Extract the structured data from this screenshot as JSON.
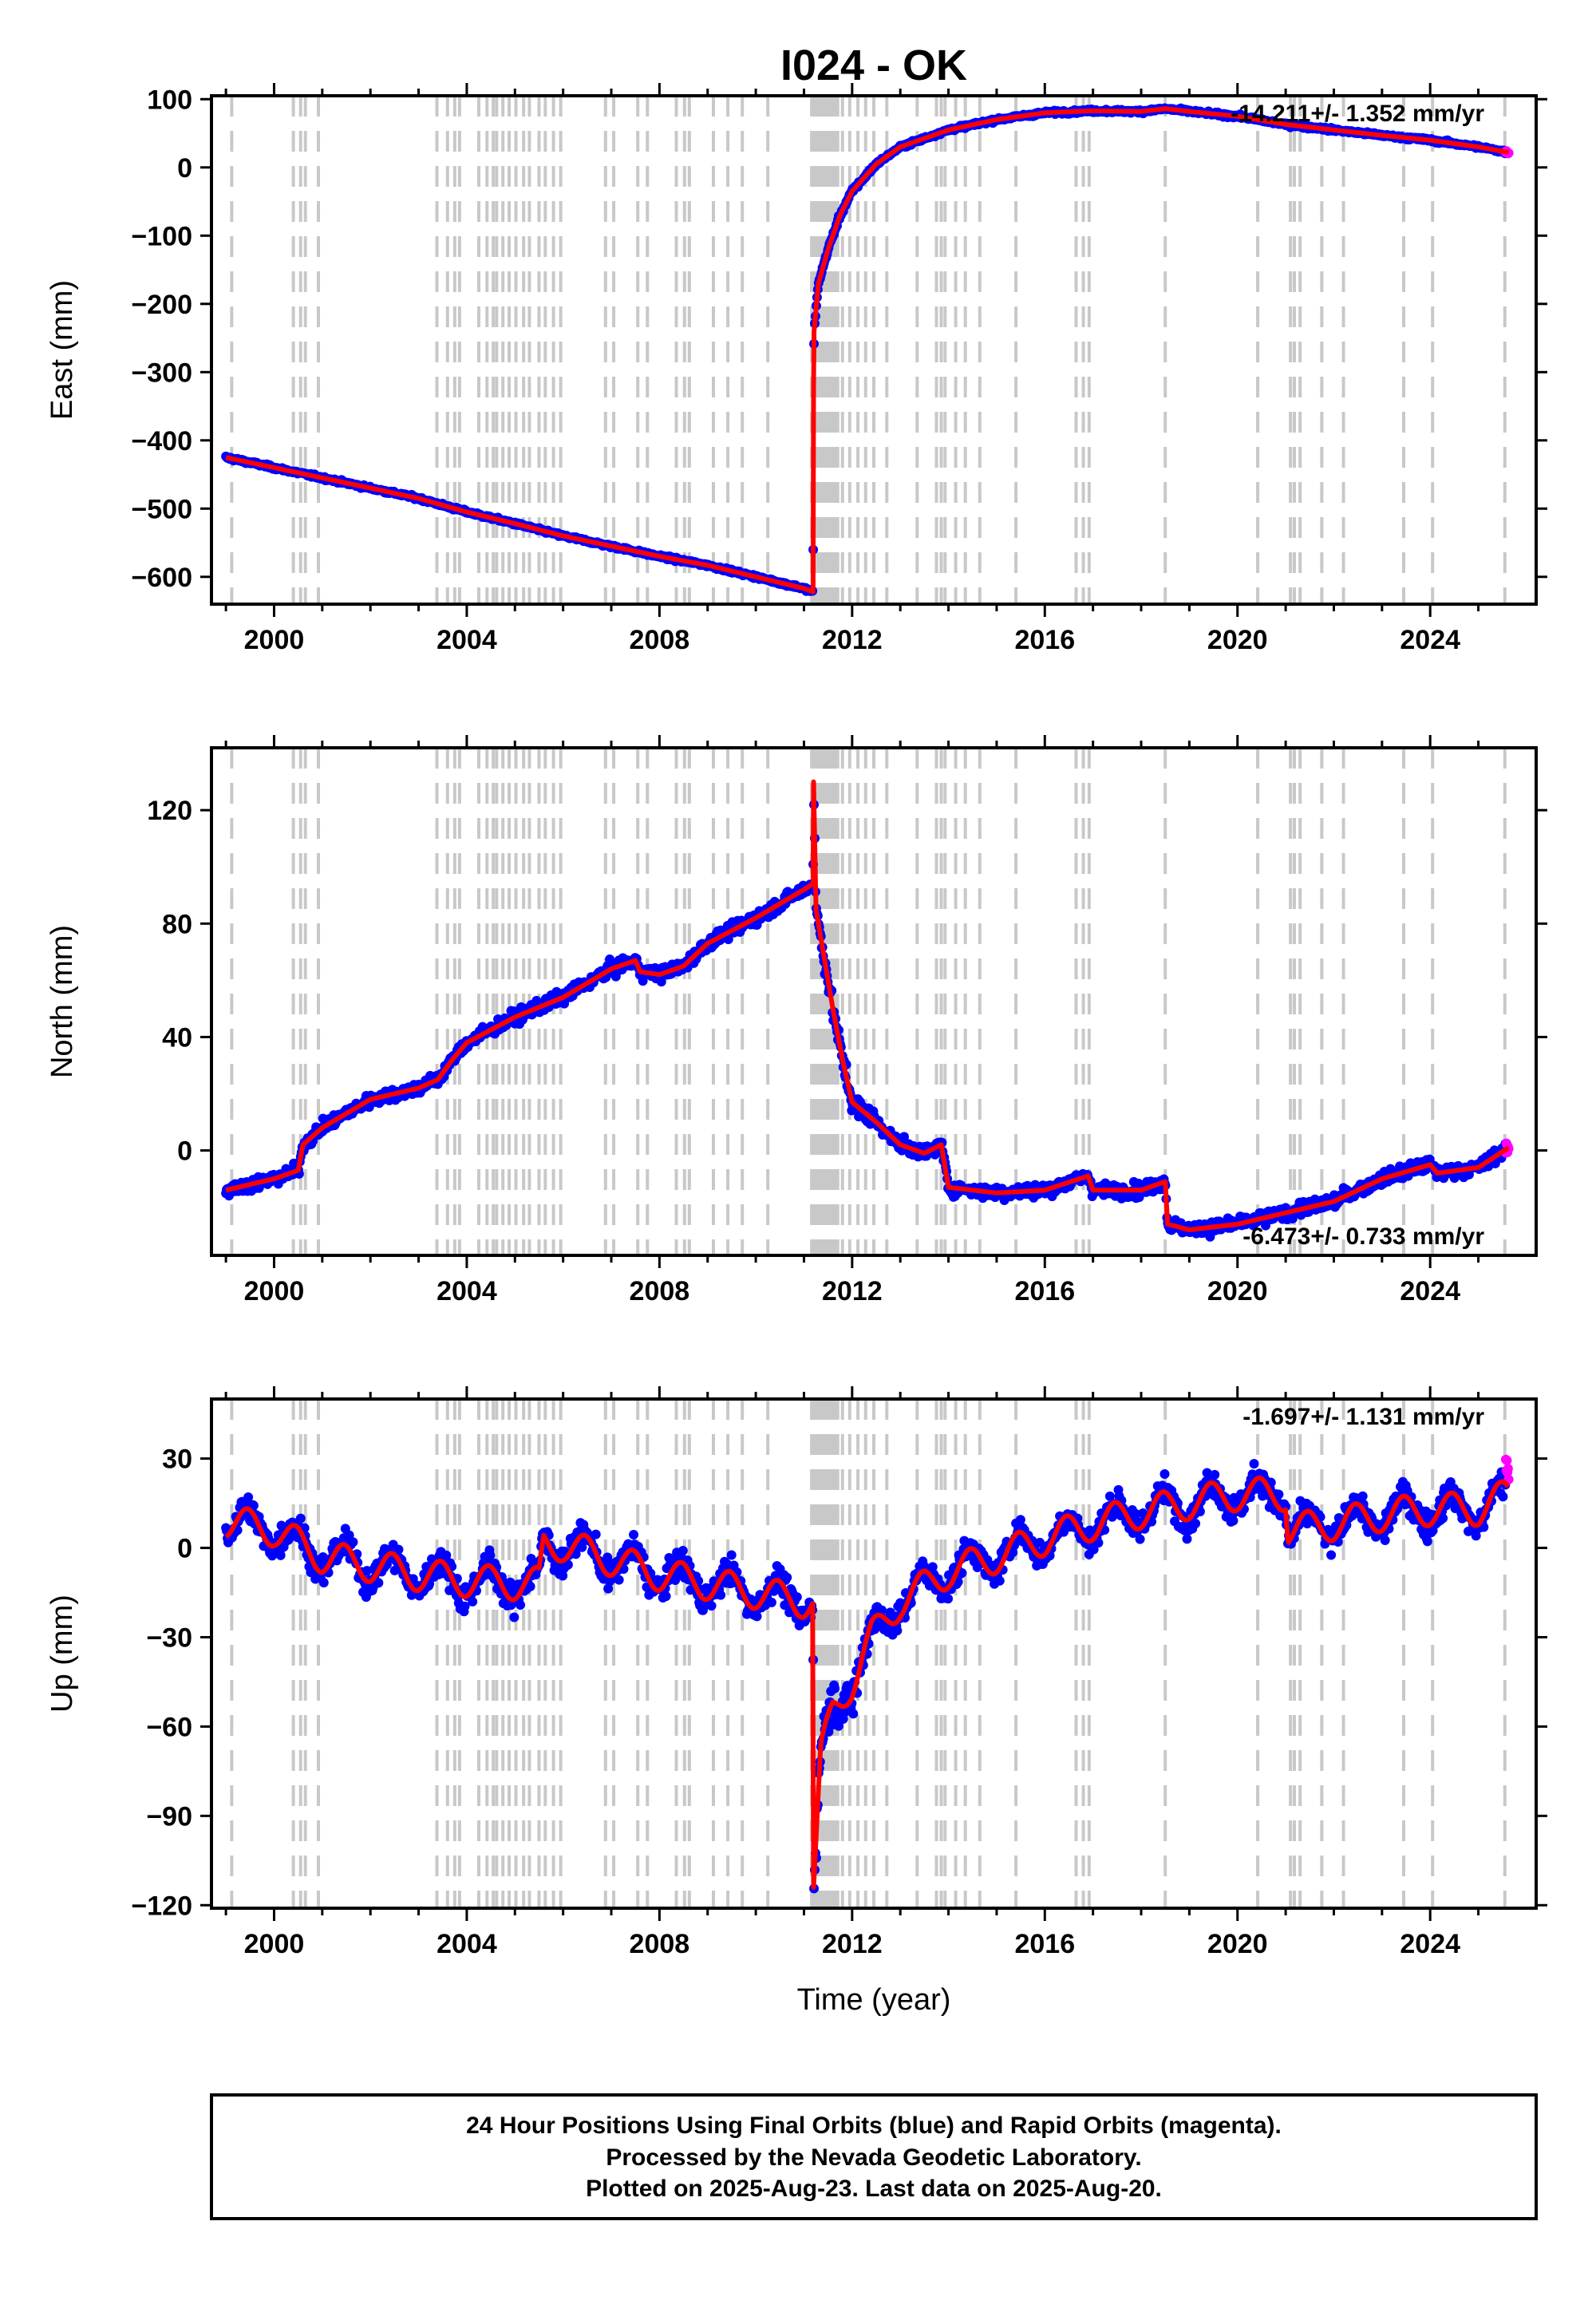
{
  "chart_data": {
    "title": "I024 - OK",
    "xlabel": "Time (year)",
    "x_ticks": [
      "2000",
      "2004",
      "2008",
      "2012",
      "2016",
      "2020",
      "2024"
    ],
    "xlim": [
      1998.7,
      2026.2
    ],
    "colors": {
      "final": "#0000ff",
      "rapid": "#ff00ff",
      "model": "#ff0000",
      "events": "#c8c8c8"
    },
    "events": [
      1999.12,
      2000.4,
      2000.55,
      2000.65,
      2000.92,
      2003.38,
      2003.6,
      2003.75,
      2003.85,
      2004.25,
      2004.42,
      2004.55,
      2004.62,
      2004.75,
      2004.88,
      2005.02,
      2005.18,
      2005.3,
      2005.5,
      2005.63,
      2005.8,
      2005.95,
      2006.88,
      2007.05,
      2007.55,
      2007.75,
      2008.35,
      2008.52,
      2008.62,
      2009.12,
      2009.42,
      2009.72,
      2010.25,
      2011.16,
      2011.22,
      2011.28,
      2011.34,
      2011.4,
      2011.46,
      2011.52,
      2011.58,
      2011.64,
      2011.7,
      2011.8,
      2011.95,
      2012.12,
      2012.28,
      2012.45,
      2012.72,
      2013.35,
      2013.75,
      2013.85,
      2013.93,
      2014.15,
      2014.35,
      2014.65,
      2015.4,
      2016.65,
      2016.8,
      2016.92,
      2018.5,
      2020.42,
      2021.1,
      2021.18,
      2021.3,
      2021.75,
      2022.2,
      2023.45,
      2024.05,
      2025.55
    ],
    "panels": [
      {
        "name": "East",
        "ylabel": "East (mm)",
        "ylim": [
          -640,
          105
        ],
        "yticks": [
          100,
          0,
          -100,
          -200,
          -300,
          -400,
          -500,
          -600
        ],
        "ytick_labels": [
          "100",
          "0",
          "−100",
          "−200",
          "−300",
          "−400",
          "−500",
          "−600"
        ],
        "rate": "-14.211+/- 1.352 mm/yr",
        "rate_position": "top-right",
        "scatter": 3,
        "model": [
          [
            1999.0,
            -425
          ],
          [
            2000.0,
            -440
          ],
          [
            2001.0,
            -455
          ],
          [
            2002.0,
            -470
          ],
          [
            2003.0,
            -485
          ],
          [
            2004.0,
            -505
          ],
          [
            2005.0,
            -522
          ],
          [
            2006.0,
            -540
          ],
          [
            2007.0,
            -555
          ],
          [
            2008.0,
            -570
          ],
          [
            2009.0,
            -583
          ],
          [
            2010.0,
            -600
          ],
          [
            2011.0,
            -617
          ],
          [
            2011.19,
            -622
          ],
          [
            2011.2,
            -320
          ],
          [
            2011.21,
            -240
          ],
          [
            2011.3,
            -170
          ],
          [
            2011.5,
            -120
          ],
          [
            2011.75,
            -70
          ],
          [
            2012.0,
            -35
          ],
          [
            2012.5,
            5
          ],
          [
            2013.0,
            30
          ],
          [
            2014.0,
            55
          ],
          [
            2015.0,
            70
          ],
          [
            2016.0,
            80
          ],
          [
            2017.0,
            83
          ],
          [
            2018.0,
            82
          ],
          [
            2018.5,
            86
          ],
          [
            2019.0,
            82
          ],
          [
            2020.0,
            75
          ],
          [
            2021.0,
            63
          ],
          [
            2022.0,
            55
          ],
          [
            2023.0,
            47
          ],
          [
            2024.0,
            40
          ],
          [
            2025.0,
            30
          ],
          [
            2025.63,
            22
          ]
        ]
      },
      {
        "name": "North",
        "ylabel": "North (mm)",
        "ylim": [
          -37,
          142
        ],
        "yticks": [
          120,
          80,
          40,
          0
        ],
        "ytick_labels": [
          "120",
          "80",
          "40",
          "0"
        ],
        "rate": "-6.473+/- 0.733 mm/yr",
        "rate_position": "bottom-right",
        "scatter": 3,
        "model": [
          [
            1999.0,
            -14
          ],
          [
            1999.5,
            -12
          ],
          [
            2000.0,
            -10
          ],
          [
            2000.5,
            -7
          ],
          [
            2000.6,
            2
          ],
          [
            2001.0,
            8
          ],
          [
            2002.0,
            18
          ],
          [
            2003.0,
            22
          ],
          [
            2003.4,
            25
          ],
          [
            2003.7,
            32
          ],
          [
            2004.0,
            38
          ],
          [
            2005.0,
            47
          ],
          [
            2006.0,
            54
          ],
          [
            2007.0,
            64
          ],
          [
            2007.5,
            67
          ],
          [
            2007.6,
            63
          ],
          [
            2008.0,
            62
          ],
          [
            2008.5,
            65
          ],
          [
            2009.0,
            73
          ],
          [
            2010.0,
            82
          ],
          [
            2011.0,
            92
          ],
          [
            2011.19,
            94
          ],
          [
            2011.2,
            130
          ],
          [
            2011.25,
            85
          ],
          [
            2011.4,
            70
          ],
          [
            2011.6,
            50
          ],
          [
            2011.8,
            32
          ],
          [
            2012.0,
            17
          ],
          [
            2012.5,
            10
          ],
          [
            2013.0,
            2
          ],
          [
            2013.5,
            -1
          ],
          [
            2013.85,
            2
          ],
          [
            2014.0,
            -13
          ],
          [
            2015.0,
            -15
          ],
          [
            2016.0,
            -14
          ],
          [
            2016.9,
            -9
          ],
          [
            2017.0,
            -14
          ],
          [
            2018.0,
            -14
          ],
          [
            2018.5,
            -11
          ],
          [
            2018.55,
            -26
          ],
          [
            2019.0,
            -28
          ],
          [
            2020.0,
            -26
          ],
          [
            2021.0,
            -22
          ],
          [
            2022.0,
            -18
          ],
          [
            2023.0,
            -10
          ],
          [
            2024.0,
            -5
          ],
          [
            2024.15,
            -8
          ],
          [
            2025.0,
            -6
          ],
          [
            2025.63,
            1
          ]
        ]
      },
      {
        "name": "Up",
        "ylabel": "Up (mm)",
        "ylim": [
          -121,
          50
        ],
        "yticks": [
          30,
          0,
          -30,
          -60,
          -90,
          -120
        ],
        "ytick_labels": [
          "30",
          "0",
          "−30",
          "−60",
          "−90",
          "−120"
        ],
        "rate": "-1.697+/- 1.131 mm/yr",
        "rate_position": "top-right",
        "scatter": 6,
        "model": [
          [
            1999.0,
            9
          ],
          [
            2000.0,
            6
          ],
          [
            2001.0,
            -3
          ],
          [
            2002.0,
            -6
          ],
          [
            2003.0,
            -9
          ],
          [
            2004.0,
            -11
          ],
          [
            2005.0,
            -12
          ],
          [
            2005.5,
            -12
          ],
          [
            2005.6,
            1
          ],
          [
            2006.0,
            1
          ],
          [
            2007.0,
            -4
          ],
          [
            2008.0,
            -9
          ],
          [
            2009.0,
            -12
          ],
          [
            2010.0,
            -15
          ],
          [
            2011.0,
            -18
          ],
          [
            2011.19,
            -18
          ],
          [
            2011.2,
            -114
          ],
          [
            2011.35,
            -70
          ],
          [
            2011.6,
            -55
          ],
          [
            2012.0,
            -45
          ],
          [
            2012.4,
            -30
          ],
          [
            2013.0,
            -18
          ],
          [
            2014.0,
            -8
          ],
          [
            2015.0,
            -3
          ],
          [
            2016.0,
            3
          ],
          [
            2017.0,
            8
          ],
          [
            2018.0,
            12
          ],
          [
            2019.0,
            15
          ],
          [
            2020.0,
            18
          ],
          [
            2021.0,
            18
          ],
          [
            2021.05,
            6
          ],
          [
            2022.0,
            8
          ],
          [
            2023.0,
            11
          ],
          [
            2024.0,
            13
          ],
          [
            2025.0,
            13
          ],
          [
            2025.63,
            18
          ]
        ],
        "seasonal_amplitude": 5.5
      }
    ]
  },
  "footer": {
    "line1": "24 Hour Positions Using Final Orbits (blue) and Rapid Orbits (magenta).",
    "line2": "Processed by the Nevada Geodetic Laboratory.",
    "line3": "Plotted on 2025-Aug-23. Last data on 2025-Aug-20."
  }
}
